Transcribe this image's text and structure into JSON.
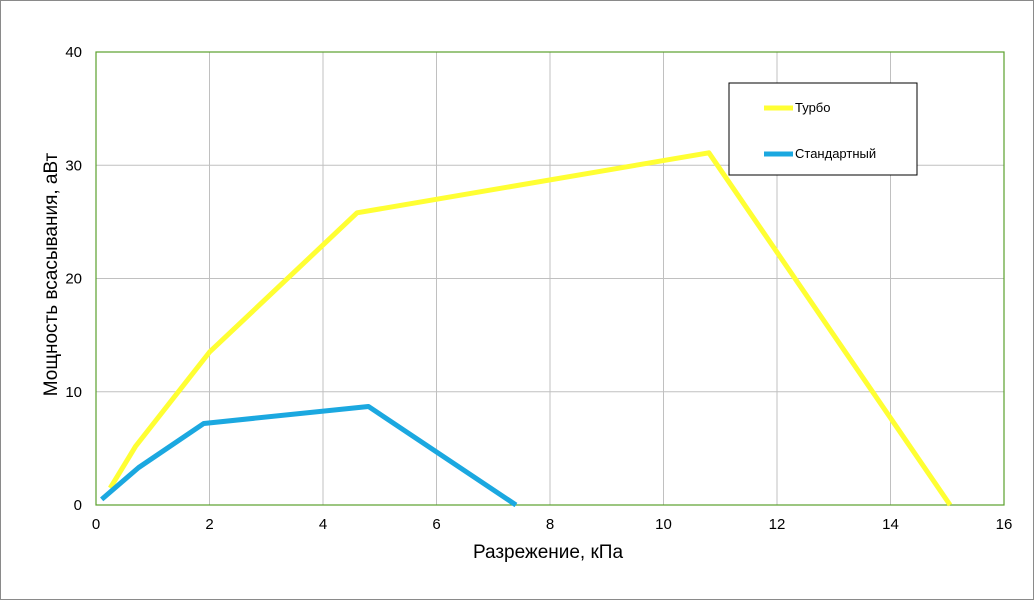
{
  "chart_data": {
    "type": "line",
    "xlabel": "Разрежение, кПа",
    "ylabel": "Мощность всасывания, аВт",
    "xlim": [
      0,
      16
    ],
    "ylim": [
      0,
      40
    ],
    "x_ticks": [
      0,
      2,
      4,
      6,
      8,
      10,
      12,
      14,
      16
    ],
    "y_ticks": [
      0,
      10,
      20,
      30,
      40
    ],
    "grid": true,
    "legend_position": "top-right",
    "colors": {
      "plot_border": "#5aa02c",
      "grid": "#c0c0c0"
    },
    "series": [
      {
        "name": "Турбо",
        "color": "#ffff33",
        "points": [
          [
            0.25,
            1.5
          ],
          [
            0.7,
            5.2
          ],
          [
            2.0,
            13.5
          ],
          [
            4.6,
            25.8
          ],
          [
            10.8,
            31.1
          ],
          [
            15.05,
            0
          ]
        ]
      },
      {
        "name": "Стандартный",
        "color": "#1ba8e0",
        "points": [
          [
            0.1,
            0.5
          ],
          [
            0.75,
            3.3
          ],
          [
            1.9,
            7.2
          ],
          [
            4.8,
            8.7
          ],
          [
            7.4,
            0
          ]
        ]
      }
    ]
  }
}
